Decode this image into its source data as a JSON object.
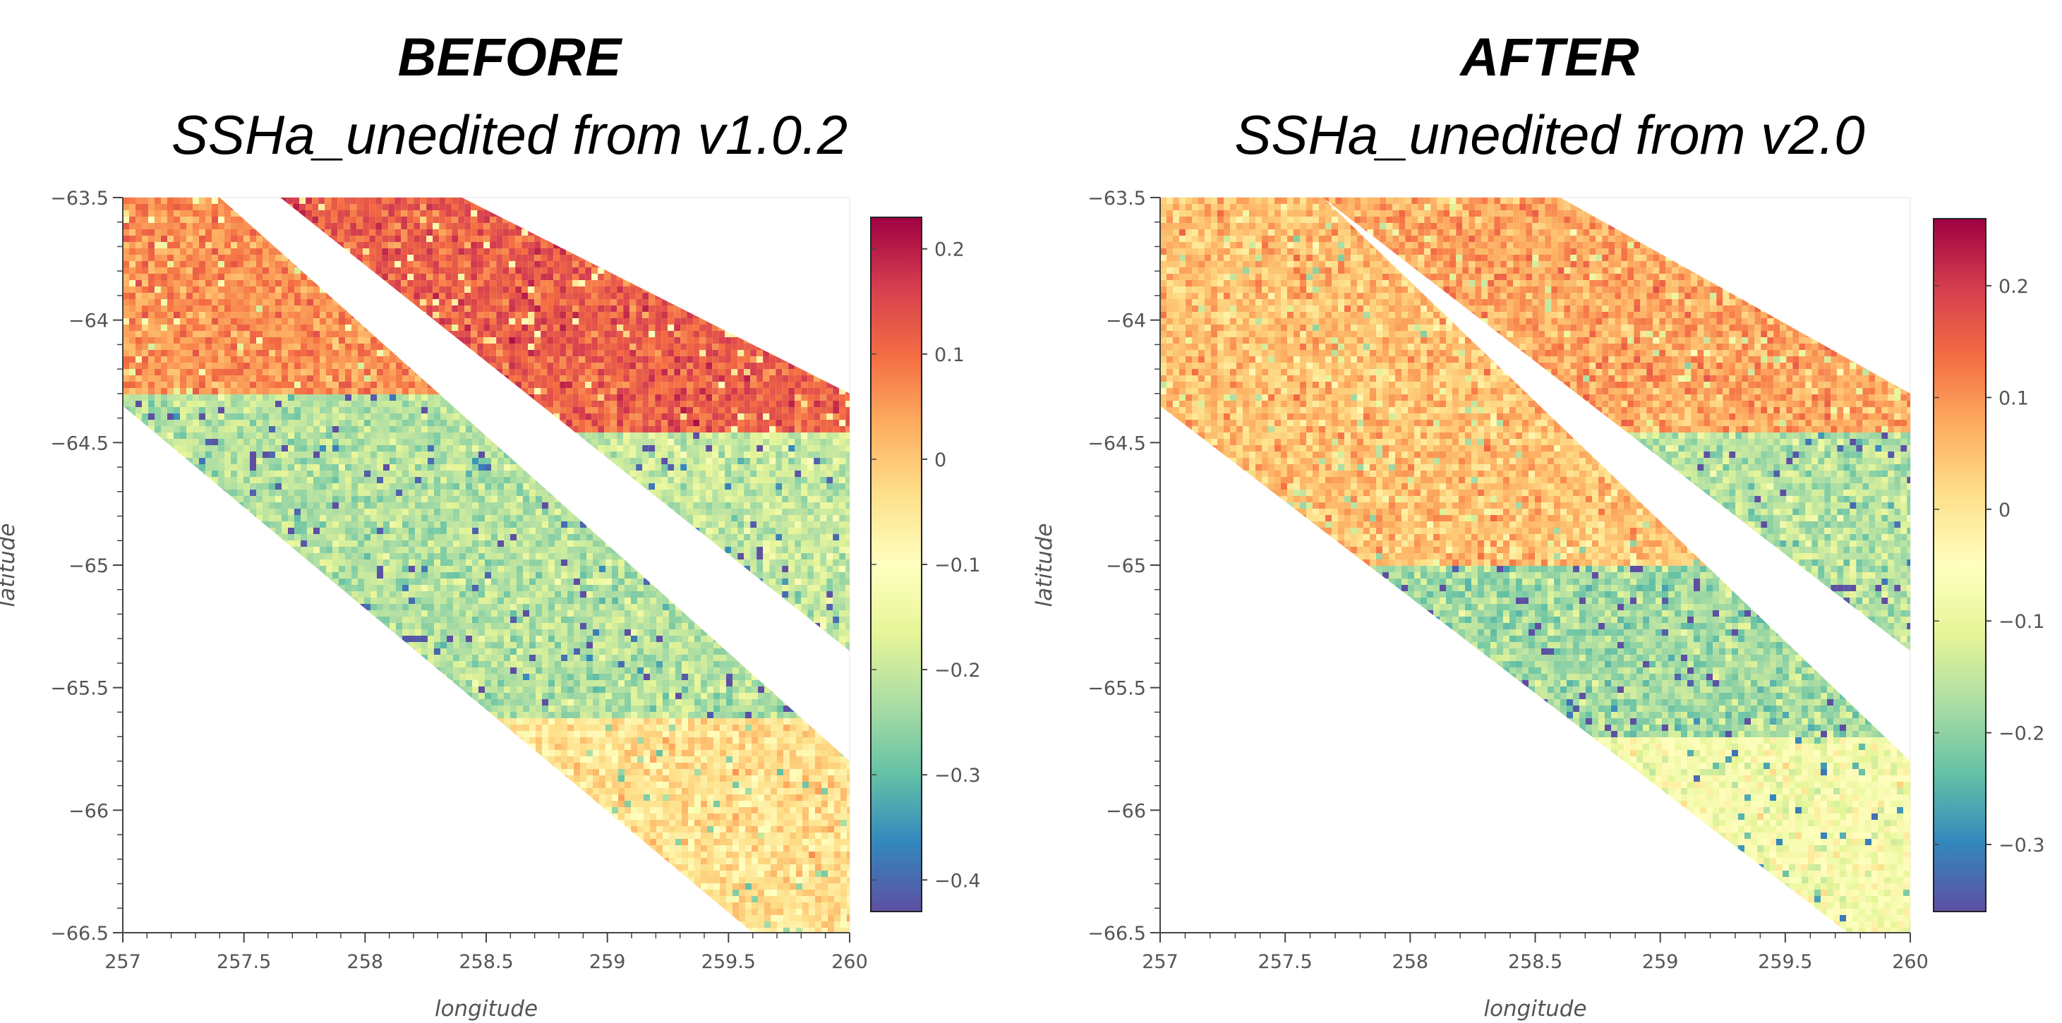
{
  "panels": [
    {
      "heading": "BEFORE",
      "subtitle": "SSHa_unedited from v1.0.2",
      "colorbar_ticks": [
        "0.2",
        "0.1",
        "0",
        "−0.1",
        "−0.2",
        "−0.3",
        "−0.4"
      ]
    },
    {
      "heading": "AFTER",
      "subtitle": "SSHa_unedited from v2.0",
      "colorbar_ticks": [
        "0.2",
        "0.1",
        "0",
        "−0.1",
        "−0.2",
        "−0.3"
      ]
    }
  ],
  "chart_data": [
    {
      "type": "heatmap",
      "title": "BEFORE",
      "subtitle": "SSHa_unedited from v1.0.2",
      "xlabel": "longitude",
      "ylabel": "latitude",
      "xlim": [
        257,
        260
      ],
      "ylim": [
        -66.5,
        -63.5
      ],
      "x_ticks": [
        "257",
        "257.5",
        "258",
        "258.5",
        "259",
        "259.5",
        "260"
      ],
      "y_ticks": [
        "−63.5",
        "−64",
        "−64.5",
        "−65",
        "−65.5",
        "−66",
        "−66.5"
      ],
      "colorbar": {
        "range": [
          -0.43,
          0.23
        ],
        "ticks": [
          0.2,
          0.1,
          0,
          -0.1,
          -0.2,
          -0.3,
          -0.4
        ],
        "colormap": "Spectral_r"
      },
      "swaths": [
        {
          "name": "left",
          "boundary_lon": [
            257,
            257.4,
            260,
            260,
            259.6,
            257
          ],
          "boundary_lat": [
            -63.5,
            -63.5,
            -65.8,
            -66.5,
            -66.5,
            -64.35
          ],
          "regions": [
            {
              "lat_top": -63.5,
              "lat_bottom": -64.3,
              "mean": 0.06
            },
            {
              "lat_top": -64.3,
              "lat_bottom": -65.6,
              "mean": -0.22
            },
            {
              "lat_top": -65.6,
              "lat_bottom": -66.5,
              "mean": -0.04
            }
          ]
        },
        {
          "name": "right",
          "boundary_lon": [
            257.65,
            258.4,
            260,
            260,
            257.65
          ],
          "boundary_lat": [
            -63.5,
            -63.5,
            -64.3,
            -65.35,
            -63.5
          ],
          "regions": [
            {
              "lat_top": -63.5,
              "lat_bottom": -64.45,
              "mean": 0.12
            },
            {
              "lat_top": -64.45,
              "lat_bottom": -65.35,
              "mean": -0.2
            }
          ]
        }
      ]
    },
    {
      "type": "heatmap",
      "title": "AFTER",
      "subtitle": "SSHa_unedited from v2.0",
      "xlabel": "longitude",
      "ylabel": "latitude",
      "xlim": [
        257,
        260
      ],
      "ylim": [
        -66.5,
        -63.5
      ],
      "x_ticks": [
        "257",
        "257.5",
        "258",
        "258.5",
        "259",
        "259.5",
        "260"
      ],
      "y_ticks": [
        "−63.5",
        "−64",
        "−64.5",
        "−65",
        "−65.5",
        "−66",
        "−66.5"
      ],
      "colorbar": {
        "range": [
          -0.36,
          0.26
        ],
        "ticks": [
          0.2,
          0.1,
          0,
          -0.1,
          -0.2,
          -0.3
        ],
        "colormap": "Spectral_r"
      },
      "swaths": [
        {
          "name": "left",
          "boundary_lon": [
            257,
            257.65,
            260,
            260,
            259.75,
            257
          ],
          "boundary_lat": [
            -63.5,
            -63.5,
            -65.8,
            -66.5,
            -66.5,
            -64.35
          ],
          "regions": [
            {
              "lat_top": -63.5,
              "lat_bottom": -65.0,
              "mean": 0.05
            },
            {
              "lat_top": -65.0,
              "lat_bottom": -65.7,
              "mean": -0.18
            },
            {
              "lat_top": -65.7,
              "lat_bottom": -66.5,
              "mean": -0.07
            }
          ]
        },
        {
          "name": "right",
          "boundary_lon": [
            257.65,
            258.6,
            260,
            260,
            257.65
          ],
          "boundary_lat": [
            -63.5,
            -63.5,
            -64.3,
            -65.35,
            -63.5
          ],
          "regions": [
            {
              "lat_top": -63.5,
              "lat_bottom": -64.45,
              "mean": 0.08
            },
            {
              "lat_top": -64.45,
              "lat_bottom": -65.35,
              "mean": -0.16
            }
          ]
        }
      ]
    }
  ]
}
